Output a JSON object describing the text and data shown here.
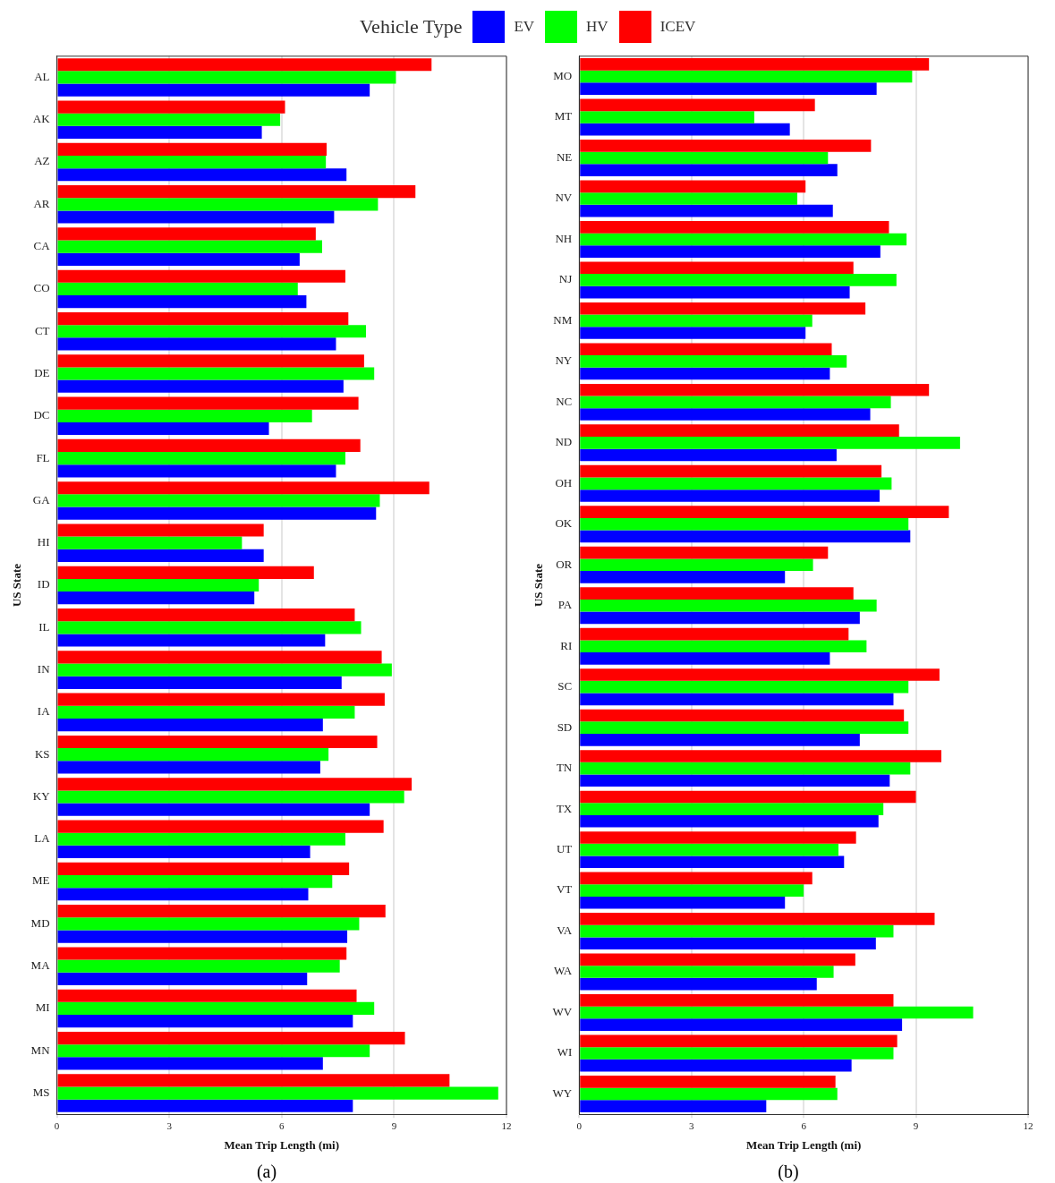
{
  "chart_data": [
    {
      "type": "bar",
      "orientation": "horizontal",
      "xlabel": "Mean Trip Length (mi)",
      "ylabel": "US State",
      "legend_title": "Vehicle Type",
      "legend": "top",
      "grid": "x",
      "xlim": [
        0,
        12
      ],
      "xticks": [
        0,
        3,
        6,
        9,
        12
      ],
      "annotations": [
        "(a)"
      ],
      "categories": [
        "AL",
        "AK",
        "AZ",
        "AR",
        "CA",
        "CO",
        "CT",
        "DE",
        "DC",
        "FL",
        "GA",
        "HI",
        "ID",
        "IL",
        "IN",
        "IA",
        "KS",
        "KY",
        "LA",
        "ME",
        "MD",
        "MA",
        "MI",
        "MN",
        "MS"
      ],
      "series": [
        {
          "name": "EV",
          "color": "#0000ff",
          "values": [
            8.35,
            5.47,
            7.73,
            7.4,
            6.48,
            6.66,
            7.45,
            7.65,
            5.66,
            7.45,
            8.52,
            5.52,
            5.27,
            7.16,
            7.6,
            7.1,
            7.03,
            8.35,
            6.76,
            6.71,
            7.75,
            6.68,
            7.9,
            7.1,
            7.9
          ]
        },
        {
          "name": "HV",
          "color": "#00ff00",
          "values": [
            9.05,
            5.96,
            7.18,
            8.57,
            7.08,
            6.43,
            8.25,
            8.47,
            6.81,
            7.7,
            8.62,
            4.94,
            5.39,
            8.12,
            8.94,
            7.95,
            7.25,
            9.27,
            7.7,
            7.35,
            8.07,
            7.55,
            8.47,
            8.35,
            11.78
          ]
        },
        {
          "name": "ICEV",
          "color": "#ff0000",
          "values": [
            10.0,
            6.09,
            7.2,
            9.57,
            6.91,
            7.7,
            7.78,
            8.2,
            8.05,
            8.1,
            9.94,
            5.52,
            6.86,
            7.95,
            8.67,
            8.75,
            8.55,
            9.47,
            8.72,
            7.8,
            8.77,
            7.73,
            8.0,
            9.29,
            10.48
          ]
        }
      ]
    },
    {
      "type": "bar",
      "orientation": "horizontal",
      "xlabel": "Mean Trip Length (mi)",
      "ylabel": "US State",
      "grid": "x",
      "xlim": [
        0,
        12
      ],
      "xticks": [
        0,
        3,
        6,
        9,
        12
      ],
      "annotations": [
        "(b)"
      ],
      "categories": [
        "MO",
        "MT",
        "NE",
        "NV",
        "NH",
        "NJ",
        "NM",
        "NY",
        "NC",
        "ND",
        "OH",
        "OK",
        "OR",
        "PA",
        "RI",
        "SC",
        "SD",
        "TN",
        "TX",
        "UT",
        "VT",
        "VA",
        "WA",
        "WV",
        "WI",
        "WY"
      ],
      "series": [
        {
          "color": "#0000ff",
          "values": [
            7.95,
            5.63,
            6.9,
            6.78,
            8.05,
            7.23,
            6.05,
            6.7,
            7.78,
            6.88,
            8.03,
            8.85,
            5.5,
            7.5,
            6.7,
            8.4,
            7.5,
            8.3,
            8.0,
            7.08,
            5.5,
            7.93,
            6.35,
            8.63,
            7.28,
            5.0
          ]
        },
        {
          "color": "#00ff00",
          "values": [
            8.9,
            4.68,
            6.65,
            5.83,
            8.75,
            8.48,
            6.23,
            7.15,
            8.33,
            10.18,
            8.35,
            8.8,
            6.25,
            7.95,
            7.68,
            8.8,
            8.8,
            8.85,
            8.13,
            6.93,
            6.0,
            8.4,
            6.8,
            10.53,
            8.4,
            6.9
          ]
        },
        {
          "color": "#ff0000",
          "values": [
            9.35,
            6.3,
            7.8,
            6.05,
            8.28,
            7.33,
            7.65,
            6.75,
            9.35,
            8.55,
            8.08,
            9.88,
            6.65,
            7.33,
            7.2,
            9.63,
            8.68,
            9.68,
            9.0,
            7.4,
            6.23,
            9.5,
            7.38,
            8.4,
            8.5,
            6.85
          ]
        }
      ]
    }
  ]
}
